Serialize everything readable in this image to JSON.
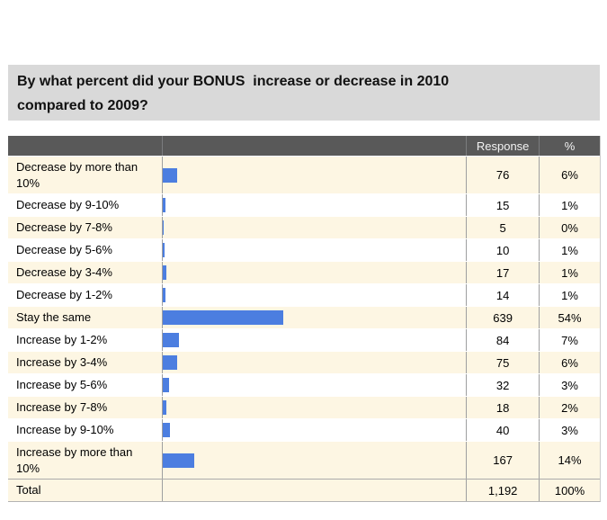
{
  "title": {
    "line1": "By what percent did your BONUS  increase or decrease in 2010",
    "line2": "compared to 2009?"
  },
  "table": {
    "headers": {
      "label": "",
      "bar": "",
      "response": "Response",
      "percent": "%"
    },
    "rows": [
      {
        "label": "Decrease by more than 10%",
        "response": "76",
        "percent": "6%",
        "value": 76
      },
      {
        "label": "Decrease by 9-10%",
        "response": "15",
        "percent": "1%",
        "value": 15
      },
      {
        "label": "Decrease by 7-8%",
        "response": "5",
        "percent": "0%",
        "value": 5
      },
      {
        "label": "Decrease by 5-6%",
        "response": "10",
        "percent": "1%",
        "value": 10
      },
      {
        "label": "Decrease by 3-4%",
        "response": "17",
        "percent": "1%",
        "value": 17
      },
      {
        "label": "Decrease by 1-2%",
        "response": "14",
        "percent": "1%",
        "value": 14
      },
      {
        "label": "Stay the same",
        "response": "639",
        "percent": "54%",
        "value": 639
      },
      {
        "label": "Increase by 1-2%",
        "response": "84",
        "percent": "7%",
        "value": 84
      },
      {
        "label": "Increase by 3-4%",
        "response": "75",
        "percent": "6%",
        "value": 75
      },
      {
        "label": "Increase by 5-6%",
        "response": "32",
        "percent": "3%",
        "value": 32
      },
      {
        "label": "Increase by 7-8%",
        "response": "18",
        "percent": "2%",
        "value": 18
      },
      {
        "label": "Increase by 9-10%",
        "response": "40",
        "percent": "3%",
        "value": 40
      },
      {
        "label": "Increase by more than 10%",
        "response": "167",
        "percent": "14%",
        "value": 167
      }
    ],
    "total": {
      "label": "Total",
      "response": "1,192",
      "percent": "100%"
    }
  },
  "colors": {
    "bar_blue": "#4c7ee0",
    "header_gray": "#595959",
    "row_cream": "#fdf6e3",
    "title_gray": "#d9d9d9"
  },
  "chart_data": {
    "type": "bar",
    "orientation": "horizontal",
    "title": "By what percent did your BONUS increase or decrease in 2010 compared to 2009?",
    "categories": [
      "Decrease by more than 10%",
      "Decrease by 9-10%",
      "Decrease by 7-8%",
      "Decrease by 5-6%",
      "Decrease by 3-4%",
      "Decrease by 1-2%",
      "Stay the same",
      "Increase by 1-2%",
      "Increase by 3-4%",
      "Increase by 5-6%",
      "Increase by 7-8%",
      "Increase by 9-10%",
      "Increase by more than 10%"
    ],
    "series": [
      {
        "name": "Response",
        "values": [
          76,
          15,
          5,
          10,
          17,
          14,
          639,
          84,
          75,
          32,
          18,
          40,
          167
        ]
      },
      {
        "name": "%",
        "values": [
          6,
          1,
          0,
          1,
          1,
          1,
          54,
          7,
          6,
          3,
          2,
          3,
          14
        ]
      }
    ],
    "total": {
      "response": 1192,
      "percent": 100
    },
    "xlim": [
      0,
      639
    ],
    "grid": false,
    "legend": false
  }
}
